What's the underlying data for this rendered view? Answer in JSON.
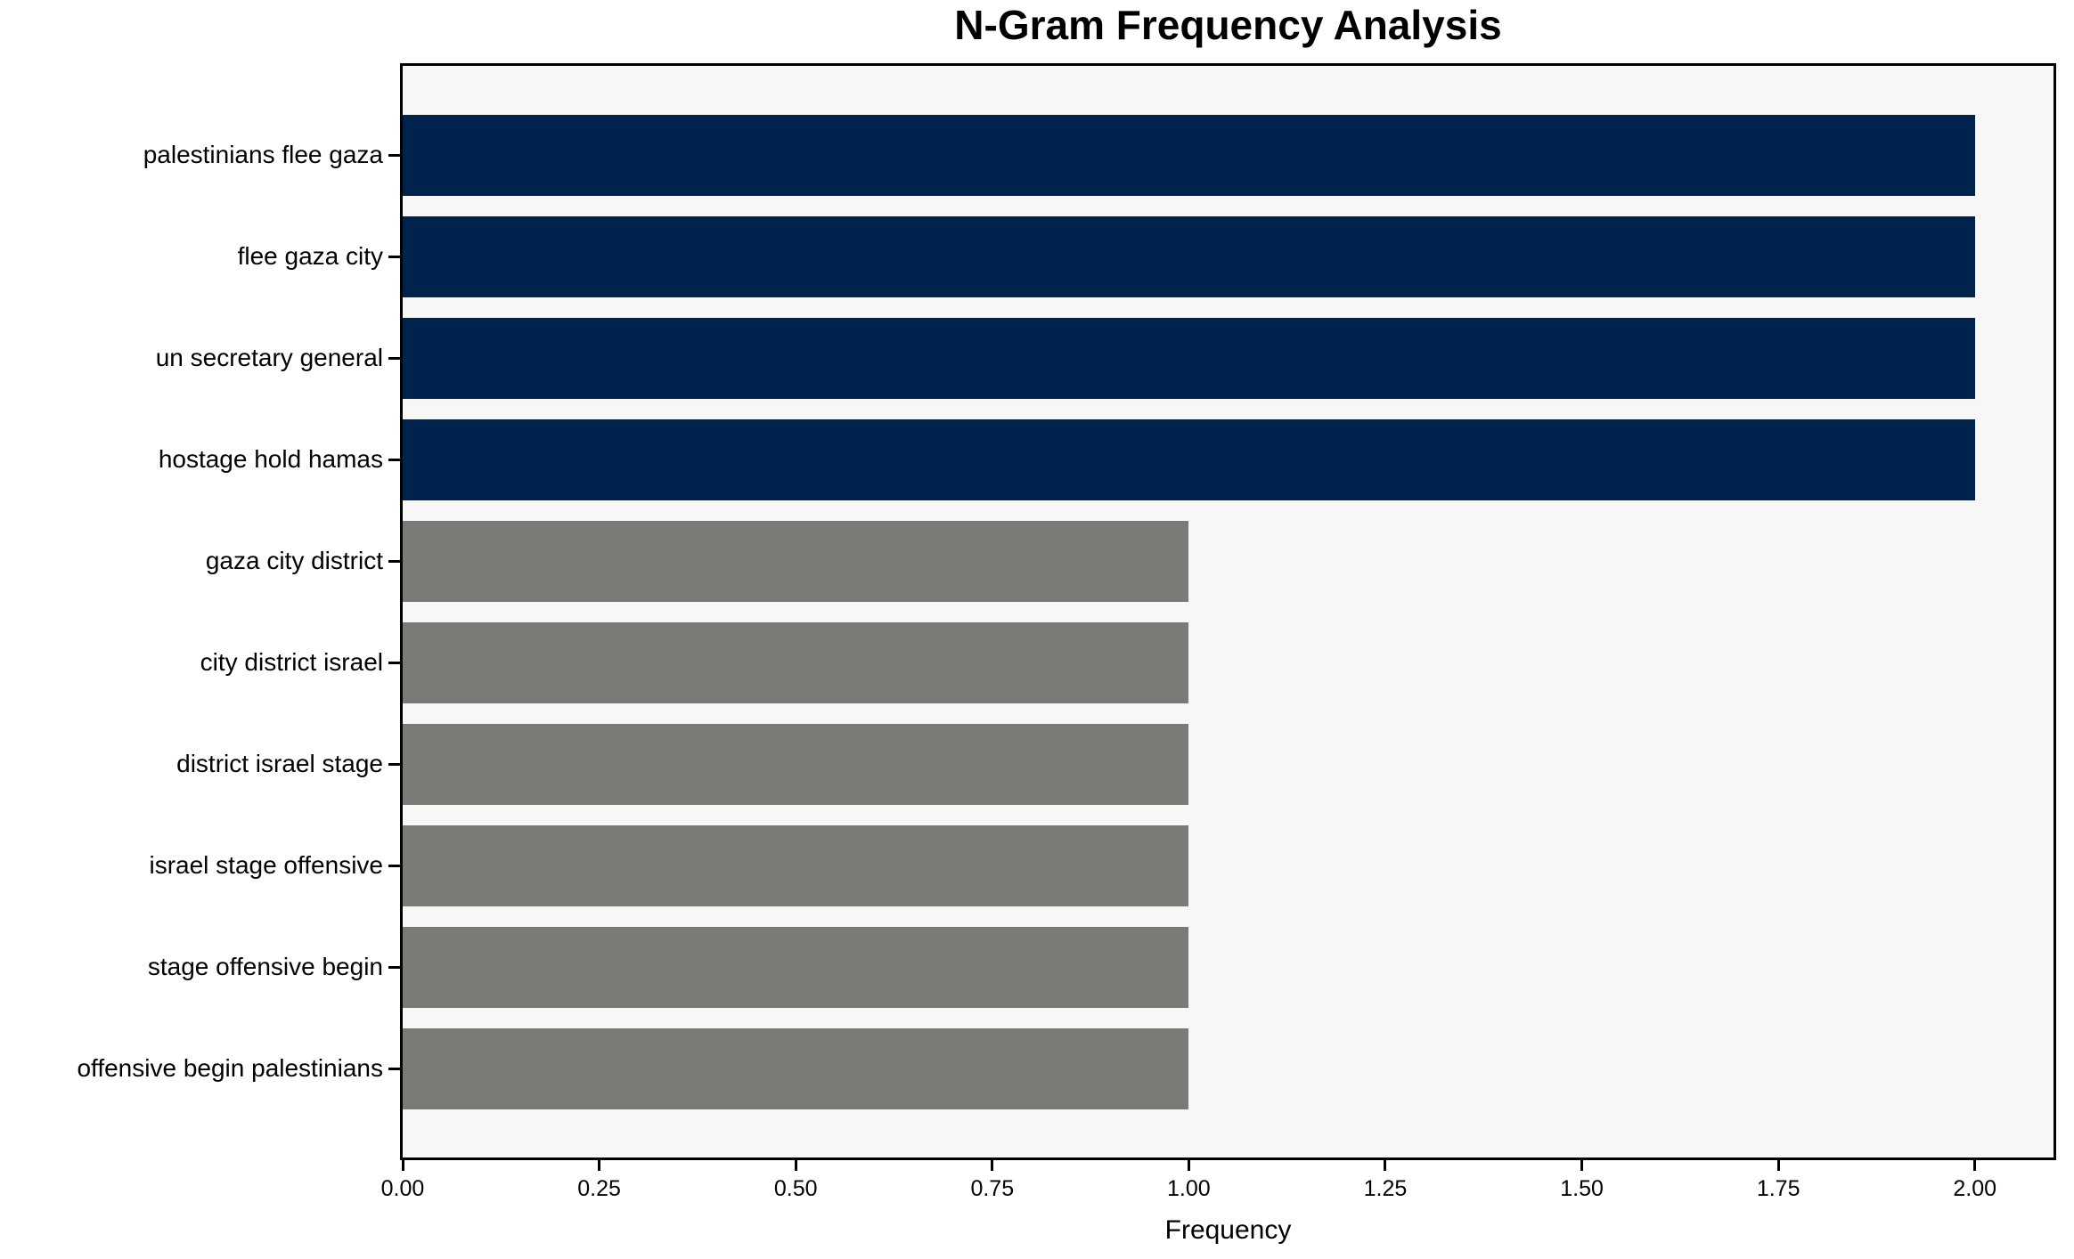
{
  "chart_data": {
    "type": "bar",
    "orientation": "horizontal",
    "title": "N-Gram Frequency Analysis",
    "xlabel": "Frequency",
    "ylabel": "",
    "categories": [
      "palestinians flee gaza",
      "flee gaza city",
      "un secretary general",
      "hostage hold hamas",
      "gaza city district",
      "city district israel",
      "district israel stage",
      "israel stage offensive",
      "stage offensive begin",
      "offensive begin palestinians"
    ],
    "values": [
      2,
      2,
      2,
      2,
      1,
      1,
      1,
      1,
      1,
      1
    ],
    "bar_colors": [
      "#00234e",
      "#00234e",
      "#00234e",
      "#00234e",
      "#7a7a77",
      "#7a7a77",
      "#7a7a77",
      "#7a7a77",
      "#7a7a77",
      "#7a7a77"
    ],
    "xlim": [
      0,
      2.1
    ],
    "xticks": [
      {
        "value": 0.0,
        "label": "0.00"
      },
      {
        "value": 0.25,
        "label": "0.25"
      },
      {
        "value": 0.5,
        "label": "0.50"
      },
      {
        "value": 0.75,
        "label": "0.75"
      },
      {
        "value": 1.0,
        "label": "1.00"
      },
      {
        "value": 1.25,
        "label": "1.25"
      },
      {
        "value": 1.5,
        "label": "1.50"
      },
      {
        "value": 1.75,
        "label": "1.75"
      },
      {
        "value": 2.0,
        "label": "2.00"
      }
    ],
    "grid": false,
    "legend": false,
    "colors": {
      "highlight_bar": "#00234e",
      "muted_bar": "#7a7a77",
      "plot_background": "#f7f7f7",
      "page_background": "#ffffff",
      "spine": "#000000",
      "text": "#000000"
    }
  }
}
